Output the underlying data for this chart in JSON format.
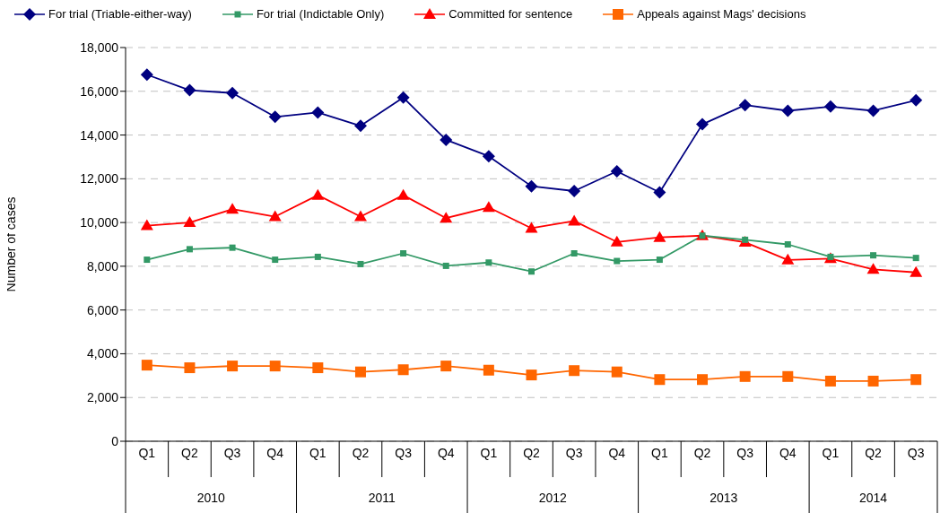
{
  "chart_data": {
    "type": "line",
    "ylabel": "Number of cases",
    "categories": [
      "Q1",
      "Q2",
      "Q3",
      "Q4",
      "Q1",
      "Q2",
      "Q3",
      "Q4",
      "Q1",
      "Q2",
      "Q3",
      "Q4",
      "Q1",
      "Q2",
      "Q3",
      "Q4",
      "Q1",
      "Q2",
      "Q3"
    ],
    "annotations": [
      "2010",
      "2011",
      "2012",
      "2013",
      "2014"
    ],
    "series": [
      {
        "name": "For trial (Triable-either-way)",
        "color": "#000080",
        "marker": "diamond",
        "values": [
          16760,
          16050,
          15920,
          14830,
          15030,
          14420,
          15710,
          13780,
          13030,
          11660,
          11440,
          12340,
          11380,
          14490,
          15370,
          15110,
          15300,
          15110,
          15590
        ]
      },
      {
        "name": "For trial (Indictable Only)",
        "color": "#339966",
        "marker": "square",
        "values": [
          8300,
          8780,
          8850,
          8300,
          8430,
          8100,
          8590,
          8020,
          8170,
          7760,
          8590,
          8240,
          8300,
          9400,
          9210,
          9000,
          8430,
          8500,
          8380
        ]
      },
      {
        "name": "Committed for sentence",
        "color": "#ff0000",
        "marker": "triangle",
        "values": [
          9860,
          10000,
          10610,
          10270,
          11250,
          10270,
          11250,
          10200,
          10690,
          9740,
          10070,
          9110,
          9320,
          9400,
          9100,
          8290,
          8350,
          7860,
          7720
        ]
      },
      {
        "name": "Appeals against Mags' decisions",
        "color": "#ff6600",
        "marker": "square",
        "values": [
          3480,
          3360,
          3440,
          3440,
          3360,
          3170,
          3270,
          3440,
          3250,
          3030,
          3230,
          3170,
          2820,
          2820,
          2960,
          2960,
          2750,
          2750,
          2820
        ]
      }
    ],
    "ylim": [
      0,
      18000
    ],
    "yticks": [
      0,
      {
        "value": 2000,
        "label": "2,000"
      },
      {
        "value": 4000,
        "label": "4,000"
      },
      {
        "value": 6000,
        "label": "6,000"
      },
      {
        "value": 8000,
        "label": "8,000"
      },
      {
        "value": 10000,
        "label": "10,000"
      },
      {
        "value": 12000,
        "label": "12,000"
      },
      {
        "value": 14000,
        "label": "14,000"
      },
      {
        "value": 16000,
        "label": "16,000"
      },
      {
        "value": 18000,
        "label": "18,000"
      }
    ],
    "grid": "y",
    "legend": "top",
    "line_style": "solid"
  }
}
